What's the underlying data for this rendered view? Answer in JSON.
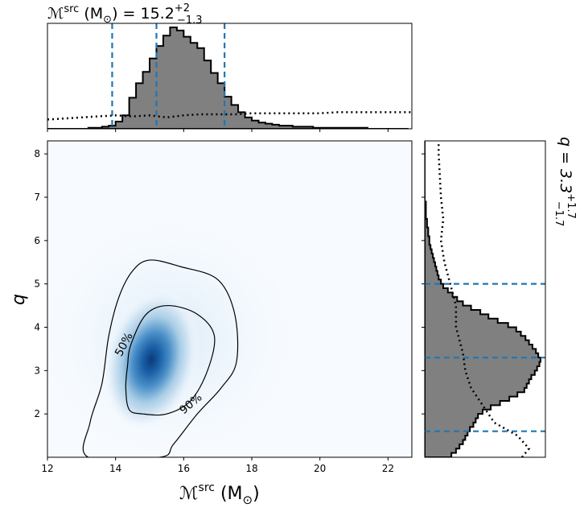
{
  "chart_data": {
    "type": "corner",
    "joint": {
      "kind": "heatmap_with_contours",
      "x_axis": {
        "label_main": "ℳ",
        "label_sup": "src",
        "label_unit": " (M",
        "label_unit_sub": "⊙",
        "label_close": ")",
        "xlim": [
          12.0,
          22.7
        ],
        "ticks": [
          12,
          14,
          16,
          18,
          20,
          22
        ],
        "tick_labels": [
          "12",
          "14",
          "16",
          "18",
          "20",
          "22"
        ]
      },
      "y_axis": {
        "label": "q",
        "ylim": [
          1.0,
          8.3
        ],
        "ticks": [
          2,
          3,
          4,
          5,
          6,
          7,
          8
        ],
        "tick_labels": [
          "2",
          "3",
          "4",
          "5",
          "6",
          "7",
          "8"
        ]
      },
      "density_peak": {
        "x": 15.0,
        "y": 3.1
      },
      "colormap": "Blues",
      "contours": [
        {
          "label": "50%",
          "points": [
            [
              15.55,
              4.5
            ],
            [
              16.4,
              4.3
            ],
            [
              16.9,
              3.8
            ],
            [
              16.7,
              3.0
            ],
            [
              16.2,
              2.3
            ],
            [
              15.5,
              2.0
            ],
            [
              14.8,
              2.0
            ],
            [
              14.4,
              2.1
            ],
            [
              14.3,
              2.6
            ],
            [
              14.35,
              3.1
            ],
            [
              14.45,
              3.6
            ],
            [
              14.9,
              4.3
            ],
            [
              15.55,
              4.5
            ]
          ]
        },
        {
          "label": "90%",
          "points": [
            [
              15.0,
              5.55
            ],
            [
              15.9,
              5.4
            ],
            [
              17.0,
              5.1
            ],
            [
              17.5,
              4.3
            ],
            [
              17.55,
              3.2
            ],
            [
              17.1,
              2.6
            ],
            [
              16.4,
              2.0
            ],
            [
              15.7,
              1.3
            ],
            [
              15.3,
              1.0
            ],
            [
              13.2,
              1.0
            ],
            [
              13.25,
              1.8
            ],
            [
              13.6,
              2.7
            ],
            [
              13.8,
              3.8
            ],
            [
              14.1,
              4.7
            ],
            [
              14.5,
              5.3
            ],
            [
              15.0,
              5.55
            ]
          ]
        }
      ]
    },
    "x_marginal": {
      "type": "step_histogram",
      "title_prefix": "ℳ",
      "title_sup": "src",
      "title_mid": " (M",
      "title_sub_sun": "⊙",
      "title_value": ") = 15.2",
      "title_upper": "+2",
      "title_lower": "−1.3",
      "bin_edges_start": 12.0,
      "bin_width": 0.2,
      "values": [
        0,
        0,
        0,
        0,
        0,
        0,
        0.01,
        0.01,
        0.02,
        0.03,
        0.07,
        0.13,
        0.3,
        0.44,
        0.55,
        0.68,
        0.8,
        0.9,
        0.98,
        0.95,
        0.89,
        0.83,
        0.78,
        0.66,
        0.54,
        0.44,
        0.31,
        0.23,
        0.16,
        0.11,
        0.08,
        0.06,
        0.05,
        0.04,
        0.03,
        0.03,
        0.02,
        0.02,
        0.02,
        0.01,
        0.01,
        0.01,
        0.01,
        0.01,
        0.01,
        0.01,
        0.01,
        0,
        0,
        0,
        0,
        0,
        0
      ],
      "prior_dotted": [
        [
          12.0,
          0.09
        ],
        [
          12.5,
          0.1
        ],
        [
          13.0,
          0.11
        ],
        [
          13.5,
          0.12
        ],
        [
          14.0,
          0.13
        ],
        [
          14.5,
          0.12
        ],
        [
          15.0,
          0.13
        ],
        [
          15.5,
          0.11
        ],
        [
          16.0,
          0.13
        ],
        [
          16.5,
          0.14
        ],
        [
          17.0,
          0.14
        ],
        [
          17.5,
          0.14
        ],
        [
          18.0,
          0.15
        ],
        [
          18.5,
          0.15
        ],
        [
          19.0,
          0.15
        ],
        [
          19.5,
          0.15
        ],
        [
          20.0,
          0.15
        ],
        [
          20.5,
          0.16
        ],
        [
          21.0,
          0.16
        ],
        [
          21.5,
          0.16
        ],
        [
          22.0,
          0.16
        ],
        [
          22.5,
          0.16
        ],
        [
          22.7,
          0.16
        ]
      ],
      "quantile_lines": [
        13.9,
        15.2,
        17.2
      ]
    },
    "y_marginal": {
      "type": "step_histogram_horizontal",
      "title_prefix": "q = 3.3",
      "title_upper": "+1.7",
      "title_lower": "−1.7",
      "bin_edges_start": 1.0,
      "bin_width": 0.1,
      "values": [
        0.23,
        0.27,
        0.3,
        0.33,
        0.35,
        0.37,
        0.39,
        0.42,
        0.44,
        0.46,
        0.5,
        0.57,
        0.65,
        0.73,
        0.8,
        0.86,
        0.88,
        0.9,
        0.92,
        0.95,
        0.97,
        0.99,
        1.0,
        0.98,
        0.96,
        0.93,
        0.9,
        0.87,
        0.83,
        0.79,
        0.72,
        0.63,
        0.55,
        0.48,
        0.4,
        0.33,
        0.28,
        0.24,
        0.2,
        0.16,
        0.14,
        0.12,
        0.11,
        0.1,
        0.09,
        0.08,
        0.07,
        0.06,
        0.05,
        0.04,
        0.04,
        0.03,
        0.03,
        0.02,
        0.02,
        0.01,
        0.01,
        0.01,
        0.01,
        0,
        0,
        0,
        0,
        0,
        0,
        0,
        0,
        0,
        0,
        0,
        0,
        0,
        0
      ],
      "prior_dotted": [
        [
          1.0,
          0.84
        ],
        [
          1.2,
          0.9
        ],
        [
          1.5,
          0.8
        ],
        [
          1.8,
          0.6
        ],
        [
          2.2,
          0.5
        ],
        [
          2.6,
          0.4
        ],
        [
          3.0,
          0.35
        ],
        [
          3.4,
          0.33
        ],
        [
          4.0,
          0.27
        ],
        [
          4.5,
          0.27
        ],
        [
          5.0,
          0.22
        ],
        [
          5.5,
          0.17
        ],
        [
          6.0,
          0.14
        ],
        [
          6.5,
          0.16
        ],
        [
          7.0,
          0.14
        ],
        [
          7.5,
          0.13
        ],
        [
          8.0,
          0.12
        ],
        [
          8.3,
          0.12
        ]
      ],
      "quantile_lines": [
        1.6,
        3.3,
        5.0
      ]
    },
    "colors": {
      "hist_fill": "#808080",
      "hist_edge": "#000000",
      "quantile_line": "#1f77b4",
      "contour": "#000000"
    }
  }
}
